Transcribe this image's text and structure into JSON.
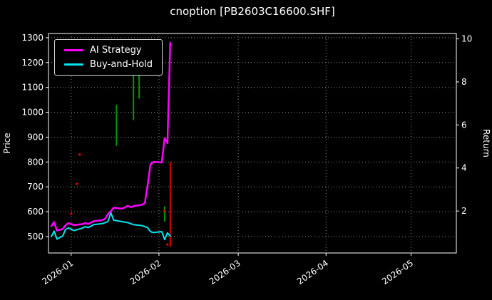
{
  "colors": {
    "background": "#000000",
    "foreground": "#ffffff",
    "grid": "#8a8a8a",
    "ai_strategy": "#ff00ff",
    "buy_and_hold": "#00e5ee",
    "buy_signal": "#009900",
    "sell_signal": "#dd0000"
  },
  "chart_data": {
    "type": "line",
    "title": "cnoption [PB2603C16600.SHF]",
    "ylabel": "Price",
    "y2label": "Return",
    "grid": true,
    "legend_position": "upper-left",
    "xlim": [
      "2025-12-24",
      "2026-05-17"
    ],
    "ylim": [
      434,
      1317
    ],
    "y2lim": [
      0.05,
      10.25
    ],
    "yticks": [
      500,
      600,
      700,
      800,
      900,
      1000,
      1100,
      1200,
      1300
    ],
    "y2ticks": [
      2,
      4,
      6,
      8,
      10
    ],
    "xticks": [
      {
        "date": "2026-01-01",
        "label": "2026-01"
      },
      {
        "date": "2026-02-01",
        "label": "2026-02"
      },
      {
        "date": "2026-03-01",
        "label": "2026-03"
      },
      {
        "date": "2026-04-01",
        "label": "2026-04"
      },
      {
        "date": "2026-05-01",
        "label": "2026-05"
      }
    ],
    "series": [
      {
        "name": "AI Strategy",
        "color": "#ff00ff",
        "line_width": 2.5,
        "points": [
          [
            "2025-12-25",
            542
          ],
          [
            "2025-12-26",
            558
          ],
          [
            "2025-12-27",
            524
          ],
          [
            "2025-12-29",
            530
          ],
          [
            "2025-12-30",
            545
          ],
          [
            "2025-12-31",
            554
          ],
          [
            "2026-01-02",
            546
          ],
          [
            "2026-01-05",
            550
          ],
          [
            "2026-01-06",
            554
          ],
          [
            "2026-01-07",
            550
          ],
          [
            "2026-01-08",
            556
          ],
          [
            "2026-01-09",
            562
          ],
          [
            "2026-01-12",
            566
          ],
          [
            "2026-01-13",
            572
          ],
          [
            "2026-01-14",
            590
          ],
          [
            "2026-01-15",
            602
          ],
          [
            "2026-01-16",
            616
          ],
          [
            "2026-01-19",
            612
          ],
          [
            "2026-01-20",
            618
          ],
          [
            "2026-01-21",
            624
          ],
          [
            "2026-01-22",
            618
          ],
          [
            "2026-01-23",
            622
          ],
          [
            "2026-01-26",
            628
          ],
          [
            "2026-01-27",
            634
          ],
          [
            "2026-01-28",
            706
          ],
          [
            "2026-01-29",
            790
          ],
          [
            "2026-01-30",
            800
          ],
          [
            "2026-02-02",
            798
          ],
          [
            "2026-02-03",
            896
          ],
          [
            "2026-02-04",
            876
          ],
          [
            "2026-02-05",
            1280
          ]
        ]
      },
      {
        "name": "Buy-and-Hold",
        "color": "#00e5ee",
        "line_width": 2,
        "points": [
          [
            "2025-12-25",
            500
          ],
          [
            "2025-12-26",
            522
          ],
          [
            "2025-12-27",
            490
          ],
          [
            "2025-12-29",
            502
          ],
          [
            "2025-12-30",
            528
          ],
          [
            "2025-12-31",
            535
          ],
          [
            "2026-01-02",
            524
          ],
          [
            "2026-01-05",
            534
          ],
          [
            "2026-01-06",
            540
          ],
          [
            "2026-01-07",
            536
          ],
          [
            "2026-01-08",
            542
          ],
          [
            "2026-01-09",
            548
          ],
          [
            "2026-01-12",
            552
          ],
          [
            "2026-01-13",
            556
          ],
          [
            "2026-01-14",
            560
          ],
          [
            "2026-01-15",
            596
          ],
          [
            "2026-01-16",
            566
          ],
          [
            "2026-01-19",
            560
          ],
          [
            "2026-01-20",
            558
          ],
          [
            "2026-01-21",
            556
          ],
          [
            "2026-01-22",
            552
          ],
          [
            "2026-01-23",
            548
          ],
          [
            "2026-01-26",
            544
          ],
          [
            "2026-01-27",
            540
          ],
          [
            "2026-01-28",
            536
          ],
          [
            "2026-01-29",
            520
          ],
          [
            "2026-01-30",
            516
          ],
          [
            "2026-02-02",
            520
          ],
          [
            "2026-02-03",
            488
          ],
          [
            "2026-02-04",
            515
          ],
          [
            "2026-02-05",
            502
          ]
        ]
      }
    ],
    "buy_signal_bars": [
      {
        "date": "2026-01-17",
        "from": 865,
        "to": 1030,
        "color": "#009900"
      },
      {
        "date": "2026-01-23",
        "from": 968,
        "to": 1185,
        "color": "#009900"
      },
      {
        "date": "2026-01-25",
        "from": 1055,
        "to": 1185,
        "color": "#009900"
      },
      {
        "date": "2026-02-03",
        "from": 560,
        "to": 622,
        "color": "#009900"
      }
    ],
    "sell_signal_bars": [
      {
        "date": "2026-02-05",
        "from": 460,
        "to": 800,
        "color": "#dd0000"
      }
    ],
    "signal_dots": [
      {
        "date": "2026-01-01",
        "price": 592,
        "color": "#dd0000"
      },
      {
        "date": "2026-01-03",
        "price": 712,
        "color": "#dd0000"
      },
      {
        "date": "2026-01-04",
        "price": 830,
        "color": "#dd0000"
      },
      {
        "date": "2026-02-03",
        "price": 604,
        "color": "#dd0000"
      },
      {
        "date": "2026-02-04",
        "price": 468,
        "color": "#dd0000"
      }
    ]
  }
}
